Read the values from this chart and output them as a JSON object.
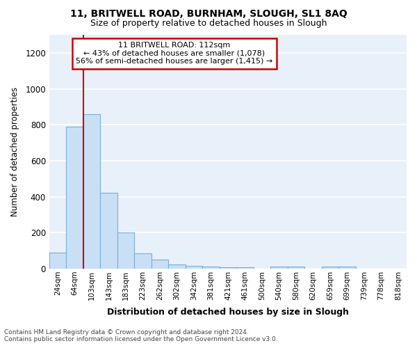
{
  "title": "11, BRITWELL ROAD, BURNHAM, SLOUGH, SL1 8AQ",
  "subtitle": "Size of property relative to detached houses in Slough",
  "xlabel": "Distribution of detached houses by size in Slough",
  "ylabel": "Number of detached properties",
  "categories": [
    "24sqm",
    "64sqm",
    "103sqm",
    "143sqm",
    "183sqm",
    "223sqm",
    "262sqm",
    "302sqm",
    "342sqm",
    "381sqm",
    "421sqm",
    "461sqm",
    "500sqm",
    "540sqm",
    "580sqm",
    "620sqm",
    "659sqm",
    "699sqm",
    "739sqm",
    "778sqm",
    "818sqm"
  ],
  "values": [
    90,
    790,
    860,
    420,
    200,
    85,
    52,
    22,
    15,
    10,
    8,
    8,
    0,
    10,
    10,
    0,
    10,
    10,
    0,
    0,
    0
  ],
  "bar_color": "#c9dff5",
  "bar_edge_color": "#7aaed6",
  "red_line_index": 2,
  "annotation_title": "11 BRITWELL ROAD: 112sqm",
  "annotation_line1": "← 43% of detached houses are smaller (1,078)",
  "annotation_line2": "56% of semi-detached houses are larger (1,415) →",
  "annotation_box_color": "#ffffff",
  "annotation_box_edge_color": "#cc0000",
  "ylim": [
    0,
    1300
  ],
  "yticks": [
    0,
    200,
    400,
    600,
    800,
    1000,
    1200
  ],
  "plot_bg_color": "#e8f0fa",
  "fig_bg_color": "#ffffff",
  "grid_color": "#ffffff",
  "footer_line1": "Contains HM Land Registry data © Crown copyright and database right 2024.",
  "footer_line2": "Contains public sector information licensed under the Open Government Licence v3.0."
}
